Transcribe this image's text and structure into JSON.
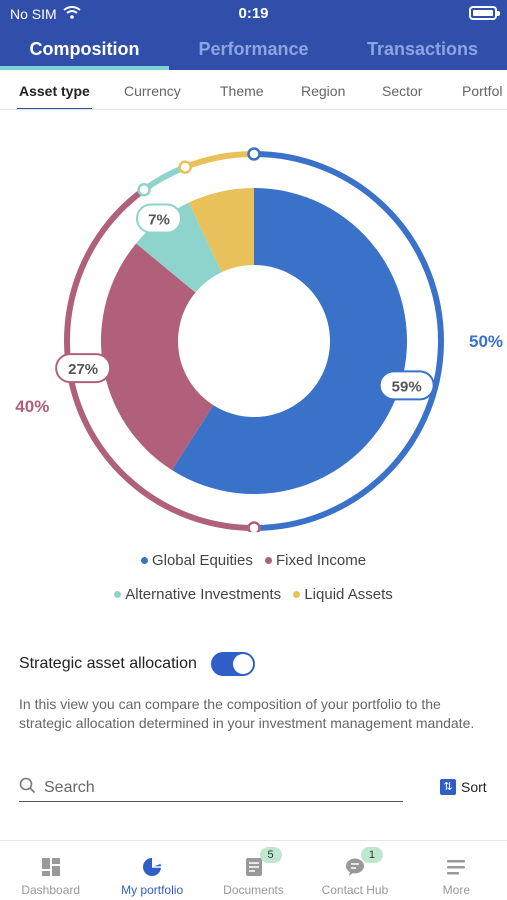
{
  "status_bar": {
    "carrier": "No SIM",
    "time": "0:19"
  },
  "main_tabs": [
    {
      "label": "Composition",
      "active": true
    },
    {
      "label": "Performance",
      "active": false
    },
    {
      "label": "Transactions",
      "active": false
    }
  ],
  "sub_tabs": [
    {
      "label": "Asset type",
      "active": true
    },
    {
      "label": "Currency",
      "active": false
    },
    {
      "label": "Theme",
      "active": false
    },
    {
      "label": "Region",
      "active": false
    },
    {
      "label": "Sector",
      "active": false
    },
    {
      "label": "Portfol",
      "active": false
    }
  ],
  "chart_data": {
    "type": "pie",
    "title": "",
    "series": [
      {
        "name": "Global Equities",
        "value": 59,
        "label": "59%",
        "color": "#3a71c9",
        "strategic": 50,
        "strategic_label": "50%"
      },
      {
        "name": "Fixed Income",
        "value": 27,
        "label": "27%",
        "color": "#b0607b",
        "strategic": 40,
        "strategic_label": "40%"
      },
      {
        "name": "Alternative Investments",
        "value": 7,
        "label": "7%",
        "color": "#8fd4cc",
        "strategic": 4
      },
      {
        "name": "Liquid Assets",
        "value": 7,
        "label": "",
        "color": "#e8c15a",
        "strategic": 6
      }
    ]
  },
  "strategic": {
    "label": "Strategic asset allocation",
    "enabled": true,
    "description": "In this view you can compare the composition of your portfolio to the strategic allocation determined in your investment management mandate."
  },
  "search": {
    "placeholder": "Search",
    "sort_label": "Sort"
  },
  "bottom_nav": [
    {
      "label": "Dashboard",
      "active": false,
      "badge": ""
    },
    {
      "label": "My portfolio",
      "active": true,
      "badge": ""
    },
    {
      "label": "Documents",
      "active": false,
      "badge": "5"
    },
    {
      "label": "Contact Hub",
      "active": false,
      "badge": "1"
    },
    {
      "label": "More",
      "active": false,
      "badge": ""
    }
  ],
  "colors": {
    "brand": "#2f4faa",
    "accent": "#2f5fc6",
    "tab_underline": "#7ed3d4"
  }
}
